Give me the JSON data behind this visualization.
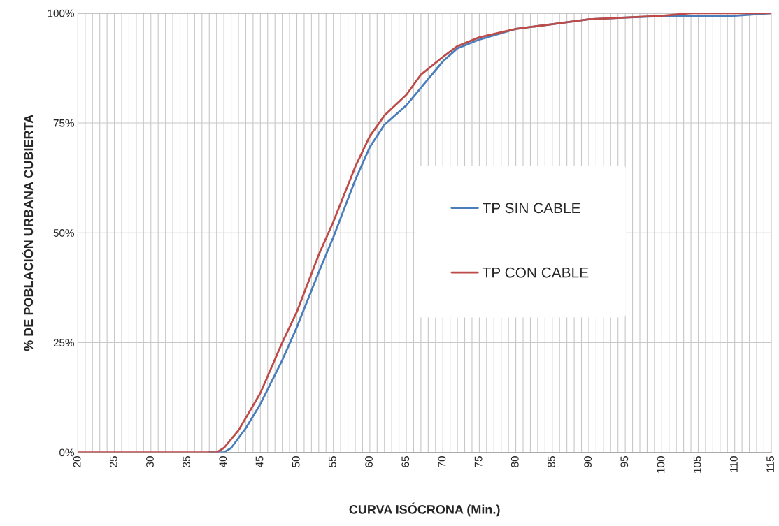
{
  "chart_data": {
    "type": "line",
    "xlabel": "CURVA ISÓCRONA (Min.)",
    "ylabel": "% DE POBLACIÓN URBANA CUBIERTA",
    "series": [
      {
        "name": "TP SIN CABLE",
        "color": "#4a7ebb",
        "x": [
          38,
          40,
          41,
          43,
          45,
          48,
          50,
          53,
          55,
          58,
          60,
          62,
          65,
          67,
          70,
          72,
          75,
          80,
          85,
          90,
          95,
          100,
          105,
          110,
          115
        ],
        "values": [
          0,
          0,
          1,
          5.5,
          11,
          21,
          28.5,
          41,
          49,
          62,
          69.5,
          74.6,
          79,
          83,
          89,
          92,
          94,
          96.4,
          97.5,
          98.6,
          99,
          99.3,
          99.3,
          99.4,
          100
        ]
      },
      {
        "name": "TP CON CABLE",
        "color": "#be4b48",
        "x": [
          20,
          30,
          36,
          39,
          40,
          42,
          45,
          48,
          50,
          53,
          55,
          58,
          60,
          62,
          65,
          67,
          70,
          72,
          75,
          80,
          85,
          90,
          95,
          100,
          104,
          110,
          115
        ],
        "values": [
          0,
          0,
          0,
          0,
          1,
          5,
          13.5,
          25,
          32,
          45,
          52.5,
          65,
          72,
          76.7,
          81.4,
          86,
          90,
          92.5,
          94.5,
          96.4,
          97.5,
          98.6,
          99,
          99.4,
          100,
          100,
          100
        ]
      }
    ],
    "xlim": [
      20,
      115
    ],
    "ylim": [
      0,
      100
    ],
    "xticks": [
      20,
      {
        "value": 21,
        "label": null
      },
      {
        "value": 22,
        "label": null
      },
      {
        "value": 23,
        "label": null
      },
      {
        "value": 24,
        "label": null
      },
      25,
      {
        "value": 26,
        "label": null
      },
      {
        "value": 27,
        "label": null
      },
      {
        "value": 28,
        "label": null
      },
      {
        "value": 29,
        "label": null
      },
      30,
      {
        "value": 31,
        "label": null
      },
      {
        "value": 32,
        "label": null
      },
      {
        "value": 33,
        "label": null
      },
      {
        "value": 34,
        "label": null
      },
      35,
      {
        "value": 36,
        "label": null
      },
      {
        "value": 37,
        "label": null
      },
      {
        "value": 38,
        "label": null
      },
      {
        "value": 39,
        "label": null
      },
      40,
      {
        "value": 41,
        "label": null
      },
      {
        "value": 42,
        "label": null
      },
      {
        "value": 43,
        "label": null
      },
      {
        "value": 44,
        "label": null
      },
      45,
      {
        "value": 46,
        "label": null
      },
      {
        "value": 47,
        "label": null
      },
      {
        "value": 48,
        "label": null
      },
      {
        "value": 49,
        "label": null
      },
      50,
      {
        "value": 51,
        "label": null
      },
      {
        "value": 52,
        "label": null
      },
      {
        "value": 53,
        "label": null
      },
      {
        "value": 54,
        "label": null
      },
      55,
      {
        "value": 56,
        "label": null
      },
      {
        "value": 57,
        "label": null
      },
      {
        "value": 58,
        "label": null
      },
      {
        "value": 59,
        "label": null
      },
      60,
      {
        "value": 61,
        "label": null
      },
      {
        "value": 62,
        "label": null
      },
      {
        "value": 63,
        "label": null
      },
      {
        "value": 64,
        "label": null
      },
      65,
      {
        "value": 66,
        "label": null
      },
      {
        "value": 67,
        "label": null
      },
      {
        "value": 68,
        "label": null
      },
      {
        "value": 69,
        "label": null
      },
      70,
      {
        "value": 71,
        "label": null
      },
      {
        "value": 72,
        "label": null
      },
      {
        "value": 73,
        "label": null
      },
      {
        "value": 74,
        "label": null
      },
      75,
      {
        "value": 76,
        "label": null
      },
      {
        "value": 77,
        "label": null
      },
      {
        "value": 78,
        "label": null
      },
      {
        "value": 79,
        "label": null
      },
      80,
      {
        "value": 81,
        "label": null
      },
      {
        "value": 82,
        "label": null
      },
      {
        "value": 83,
        "label": null
      },
      {
        "value": 84,
        "label": null
      },
      85,
      {
        "value": 86,
        "label": null
      },
      {
        "value": 87,
        "label": null
      },
      {
        "value": 88,
        "label": null
      },
      {
        "value": 89,
        "label": null
      },
      90,
      {
        "value": 91,
        "label": null
      },
      {
        "value": 92,
        "label": null
      },
      {
        "value": 93,
        "label": null
      },
      {
        "value": 94,
        "label": null
      },
      95,
      {
        "value": 96,
        "label": null
      },
      {
        "value": 97,
        "label": null
      },
      {
        "value": 98,
        "label": null
      },
      {
        "value": 99,
        "label": null
      },
      100,
      {
        "value": 101,
        "label": null
      },
      {
        "value": 102,
        "label": null
      },
      {
        "value": 103,
        "label": null
      },
      {
        "value": 104,
        "label": null
      },
      105,
      {
        "value": 106,
        "label": null
      },
      {
        "value": 107,
        "label": null
      },
      {
        "value": 108,
        "label": null
      },
      {
        "value": 109,
        "label": null
      },
      110,
      {
        "value": 111,
        "label": null
      },
      {
        "value": 112,
        "label": null
      },
      {
        "value": 113,
        "label": null
      },
      {
        "value": 114,
        "label": null
      },
      115
    ],
    "yticks": [
      {
        "value": 0,
        "label": "0%"
      },
      {
        "value": 25,
        "label": "25%"
      },
      {
        "value": 50,
        "label": "50%"
      },
      {
        "value": 75,
        "label": "75%"
      },
      {
        "value": 100,
        "label": "100%"
      }
    ],
    "grid": true,
    "legend": "right",
    "marker": "none",
    "line_style": "solid"
  }
}
